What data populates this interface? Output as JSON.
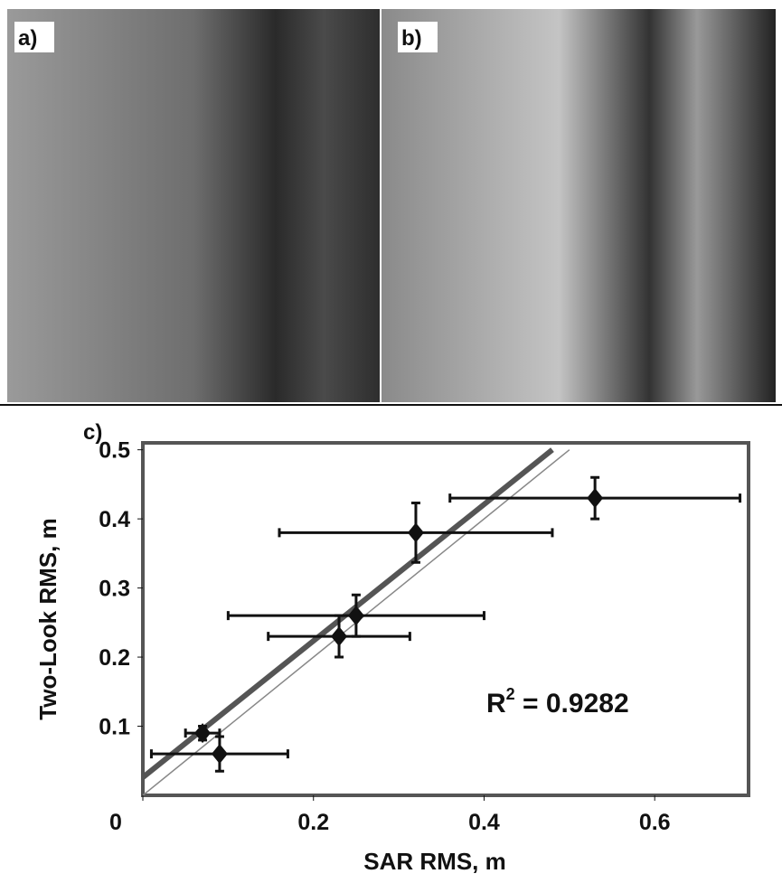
{
  "panels": [
    {
      "label": "a)"
    },
    {
      "label": "b)"
    }
  ],
  "chart_data": {
    "type": "scatter",
    "label": "c)",
    "x_label": "SAR RMS, m",
    "y_label": "Two-Look RMS, m",
    "xlim": [
      0,
      0.71
    ],
    "ylim": [
      0,
      0.51
    ],
    "xticks": [
      0,
      0.2,
      0.4,
      0.6
    ],
    "yticks": [
      0.1,
      0.2,
      0.3,
      0.4,
      0.5
    ],
    "series": [
      {
        "color": "#111111",
        "x": [
          0.53,
          0.32,
          0.25,
          0.23,
          0.07,
          0.09
        ],
        "y": [
          0.43,
          0.38,
          0.26,
          0.23,
          0.09,
          0.06
        ],
        "xerr": [
          0.17,
          0.16,
          0.15,
          0.083,
          0.02,
          0.08
        ],
        "yerr": [
          0.03,
          0.043,
          0.03,
          0.03,
          0.01,
          0.025
        ]
      }
    ],
    "lines": [
      {
        "color": "#555555",
        "width": 6,
        "x": [
          0,
          0.48
        ],
        "y": [
          0.026,
          0.5
        ]
      },
      {
        "color": "#888888",
        "width": 1.5,
        "x": [
          0,
          0.5
        ],
        "y": [
          0,
          0.5
        ]
      }
    ],
    "annotation": {
      "base": "R",
      "sup": "2",
      "rest": " = 0.9282"
    },
    "frame_color": "#555555"
  }
}
